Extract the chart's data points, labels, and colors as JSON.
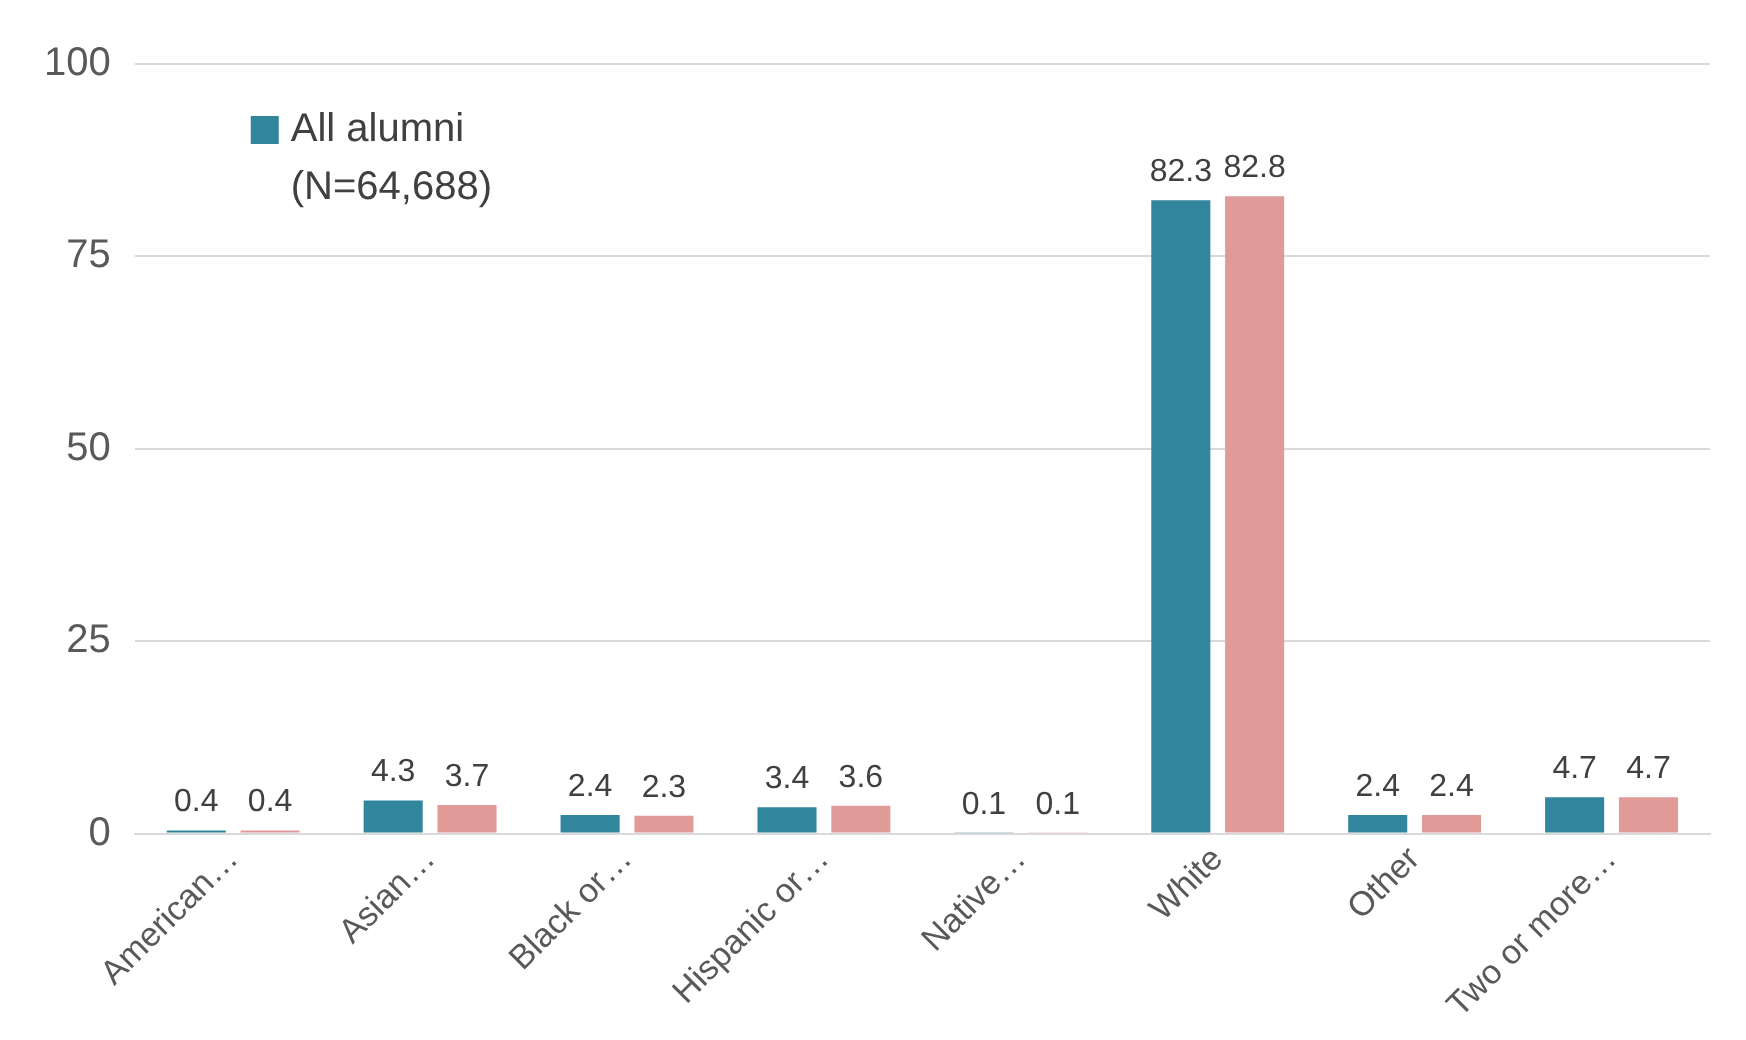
{
  "chart_data": {
    "type": "bar",
    "categories": [
      "American…",
      "Asian…",
      "Black or…",
      "Hispanic or…",
      "Native…",
      "White",
      "Other",
      "Two or more…"
    ],
    "series": [
      {
        "name": "All alumni (N=64,688)",
        "color": "#31859c",
        "values": [
          0.4,
          4.3,
          2.4,
          3.4,
          0.1,
          82.3,
          2.4,
          4.7
        ]
      },
      {
        "color": "#e09a98",
        "values": [
          0.4,
          3.7,
          2.3,
          3.6,
          0.1,
          82.8,
          2.4,
          4.7
        ]
      }
    ],
    "ylim": [
      0,
      100
    ],
    "yticks": [
      0,
      25,
      50,
      75,
      100
    ],
    "grid": "y",
    "legend": "top left",
    "data_labels": true
  }
}
